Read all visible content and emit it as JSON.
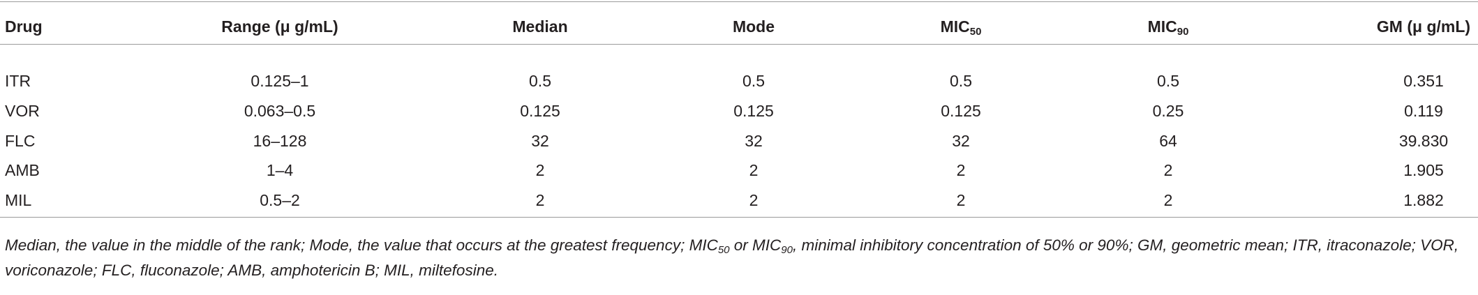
{
  "table": {
    "header": [
      {
        "text": "Drug"
      },
      {
        "text": "Range (μ g/mL)"
      },
      {
        "text": "Median"
      },
      {
        "text": "Mode"
      },
      {
        "text": "MIC",
        "sub": "50"
      },
      {
        "text": "MIC",
        "sub": "90"
      },
      {
        "text": "GM (μ g/mL)"
      }
    ],
    "rows": [
      [
        "ITR",
        "0.125–1",
        "0.5",
        "0.5",
        "0.5",
        "0.5",
        "0.351"
      ],
      [
        "VOR",
        "0.063–0.5",
        "0.125",
        "0.125",
        "0.125",
        "0.25",
        "0.119"
      ],
      [
        "FLC",
        "16–128",
        "32",
        "32",
        "32",
        "64",
        "39.830"
      ],
      [
        "AMB",
        "1–4",
        "2",
        "2",
        "2",
        "2",
        "1.905"
      ],
      [
        "MIL",
        "0.5–2",
        "2",
        "2",
        "2",
        "2",
        "1.882"
      ]
    ],
    "footnote": [
      "Median, the value in the middle of the rank; Mode, the value that occurs at the greatest frequency; MIC",
      "50",
      " or MIC",
      "90",
      ", minimal inhibitory concentration of 50% or 90%; GM, geometric mean; ITR, itraconazole; VOR, voriconazole; FLC, fluconazole; AMB, amphotericin B; MIL, miltefosine."
    ]
  }
}
